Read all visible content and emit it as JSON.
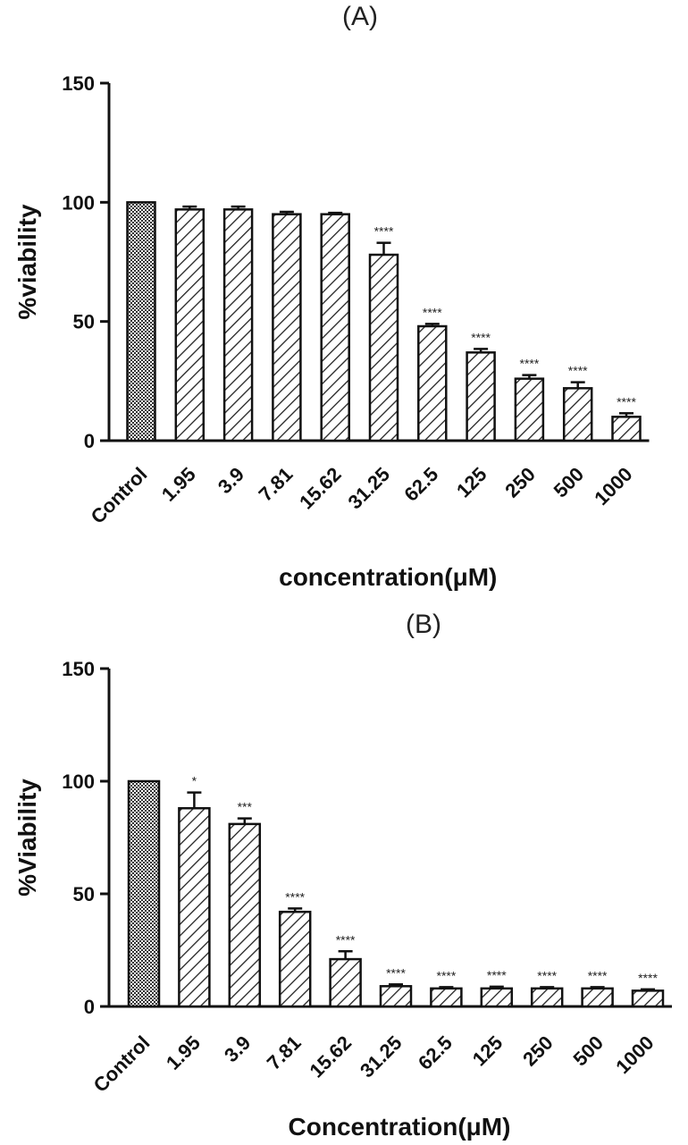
{
  "chart_data": [
    {
      "type": "bar",
      "panel_label": "(A)",
      "categories": [
        "Control",
        "1.95",
        "3.9",
        "7.81",
        "15.62",
        "31.25",
        "62.5",
        "125",
        "250",
        "500",
        "1000"
      ],
      "values": [
        100,
        97,
        97,
        95,
        95,
        78,
        48,
        37,
        26,
        22,
        10
      ],
      "errors": [
        0,
        1.2,
        1.2,
        1,
        0.6,
        5,
        1,
        1.5,
        1.5,
        2.5,
        1.5
      ],
      "significance": [
        "",
        "",
        "",
        "",
        "",
        "****",
        "****",
        "****",
        "****",
        "****",
        "****"
      ],
      "xlabel": "concentration(μM)",
      "ylabel": "%viability",
      "ylim": [
        0,
        150
      ],
      "yticks": [
        0,
        50,
        100,
        150
      ],
      "grid": false,
      "colors": {
        "bar_stroke": "#111111",
        "control_fill": "#444444"
      }
    },
    {
      "type": "bar",
      "panel_label": "(B)",
      "categories": [
        "Control",
        "1.95",
        "3.9",
        "7.81",
        "15.62",
        "31.25",
        "62.5",
        "125",
        "250",
        "500",
        "1000"
      ],
      "values": [
        100,
        88,
        81,
        42,
        21,
        9,
        8,
        8,
        8,
        8,
        7
      ],
      "errors": [
        0,
        7,
        2.5,
        1.5,
        3.5,
        0.8,
        0.6,
        0.8,
        0.6,
        0.6,
        0.6
      ],
      "significance": [
        "",
        "*",
        "***",
        "****",
        "****",
        "****",
        "****",
        "****",
        "****",
        "****",
        "****"
      ],
      "xlabel": "Concentration(μM)",
      "ylabel": "%Viability",
      "ylim": [
        0,
        150
      ],
      "yticks": [
        0,
        50,
        100,
        150
      ],
      "grid": false,
      "colors": {
        "bar_stroke": "#111111",
        "control_fill": "#444444"
      }
    }
  ]
}
